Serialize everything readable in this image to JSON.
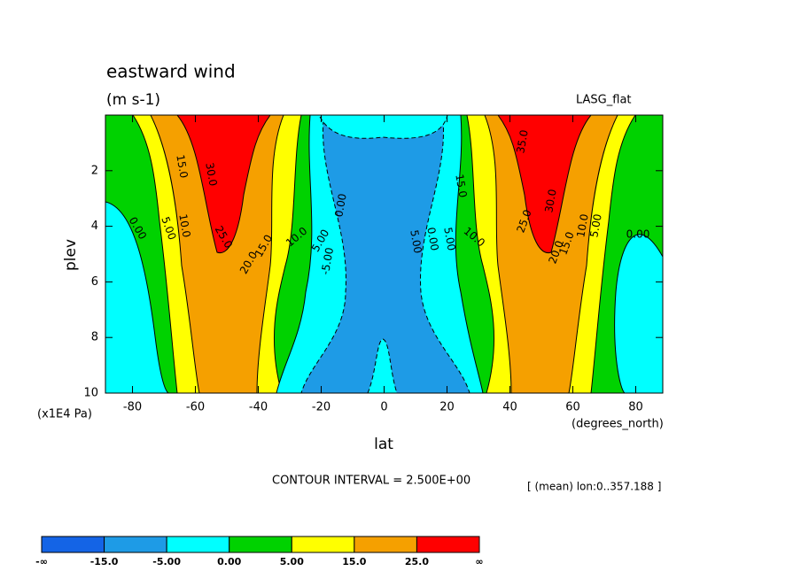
{
  "chart_data": {
    "type": "contour",
    "title": "eastward wind",
    "subtitle": "(m s-1)",
    "dataset": "LASG_flat",
    "x_label": "lat",
    "x_units": "(degrees_north)",
    "y_label": "plev",
    "y_units": "(x1E4 Pa)",
    "xlim": [
      -88.6,
      88.6
    ],
    "xticks": [
      -80,
      -60,
      -40,
      -20,
      0,
      20,
      40,
      60,
      80
    ],
    "ylim": [
      0,
      10
    ],
    "y_inverted": true,
    "yticks": [
      2,
      4,
      6,
      8,
      10
    ],
    "contour_interval": "CONTOUR INTERVAL = 2.500E+00",
    "mean_note": "[ (mean) lon:0..357.188 ]",
    "contour_labels": [
      "15.0",
      "30.0",
      "10.0",
      "5.00",
      "0.00",
      "25.0",
      "20.0",
      "15.0",
      "10.0",
      "5.00",
      "0.00",
      "-5.00",
      "5.00",
      "0.00",
      "5.00",
      "10.0",
      "15.0",
      "25.0",
      "30.0",
      "35.0",
      "20.0",
      "15.0",
      "10.0",
      "5.00",
      "0.00"
    ],
    "colorbar": {
      "colors": [
        "#1464e6",
        "#1e9be6",
        "#00ffff",
        "#00d200",
        "#ffff00",
        "#f5a000",
        "#ff0000"
      ],
      "labels": [
        "-∞",
        "-15.0",
        "-5.00",
        "0.00",
        "5.00",
        "15.0",
        "25.0",
        "∞"
      ]
    }
  }
}
